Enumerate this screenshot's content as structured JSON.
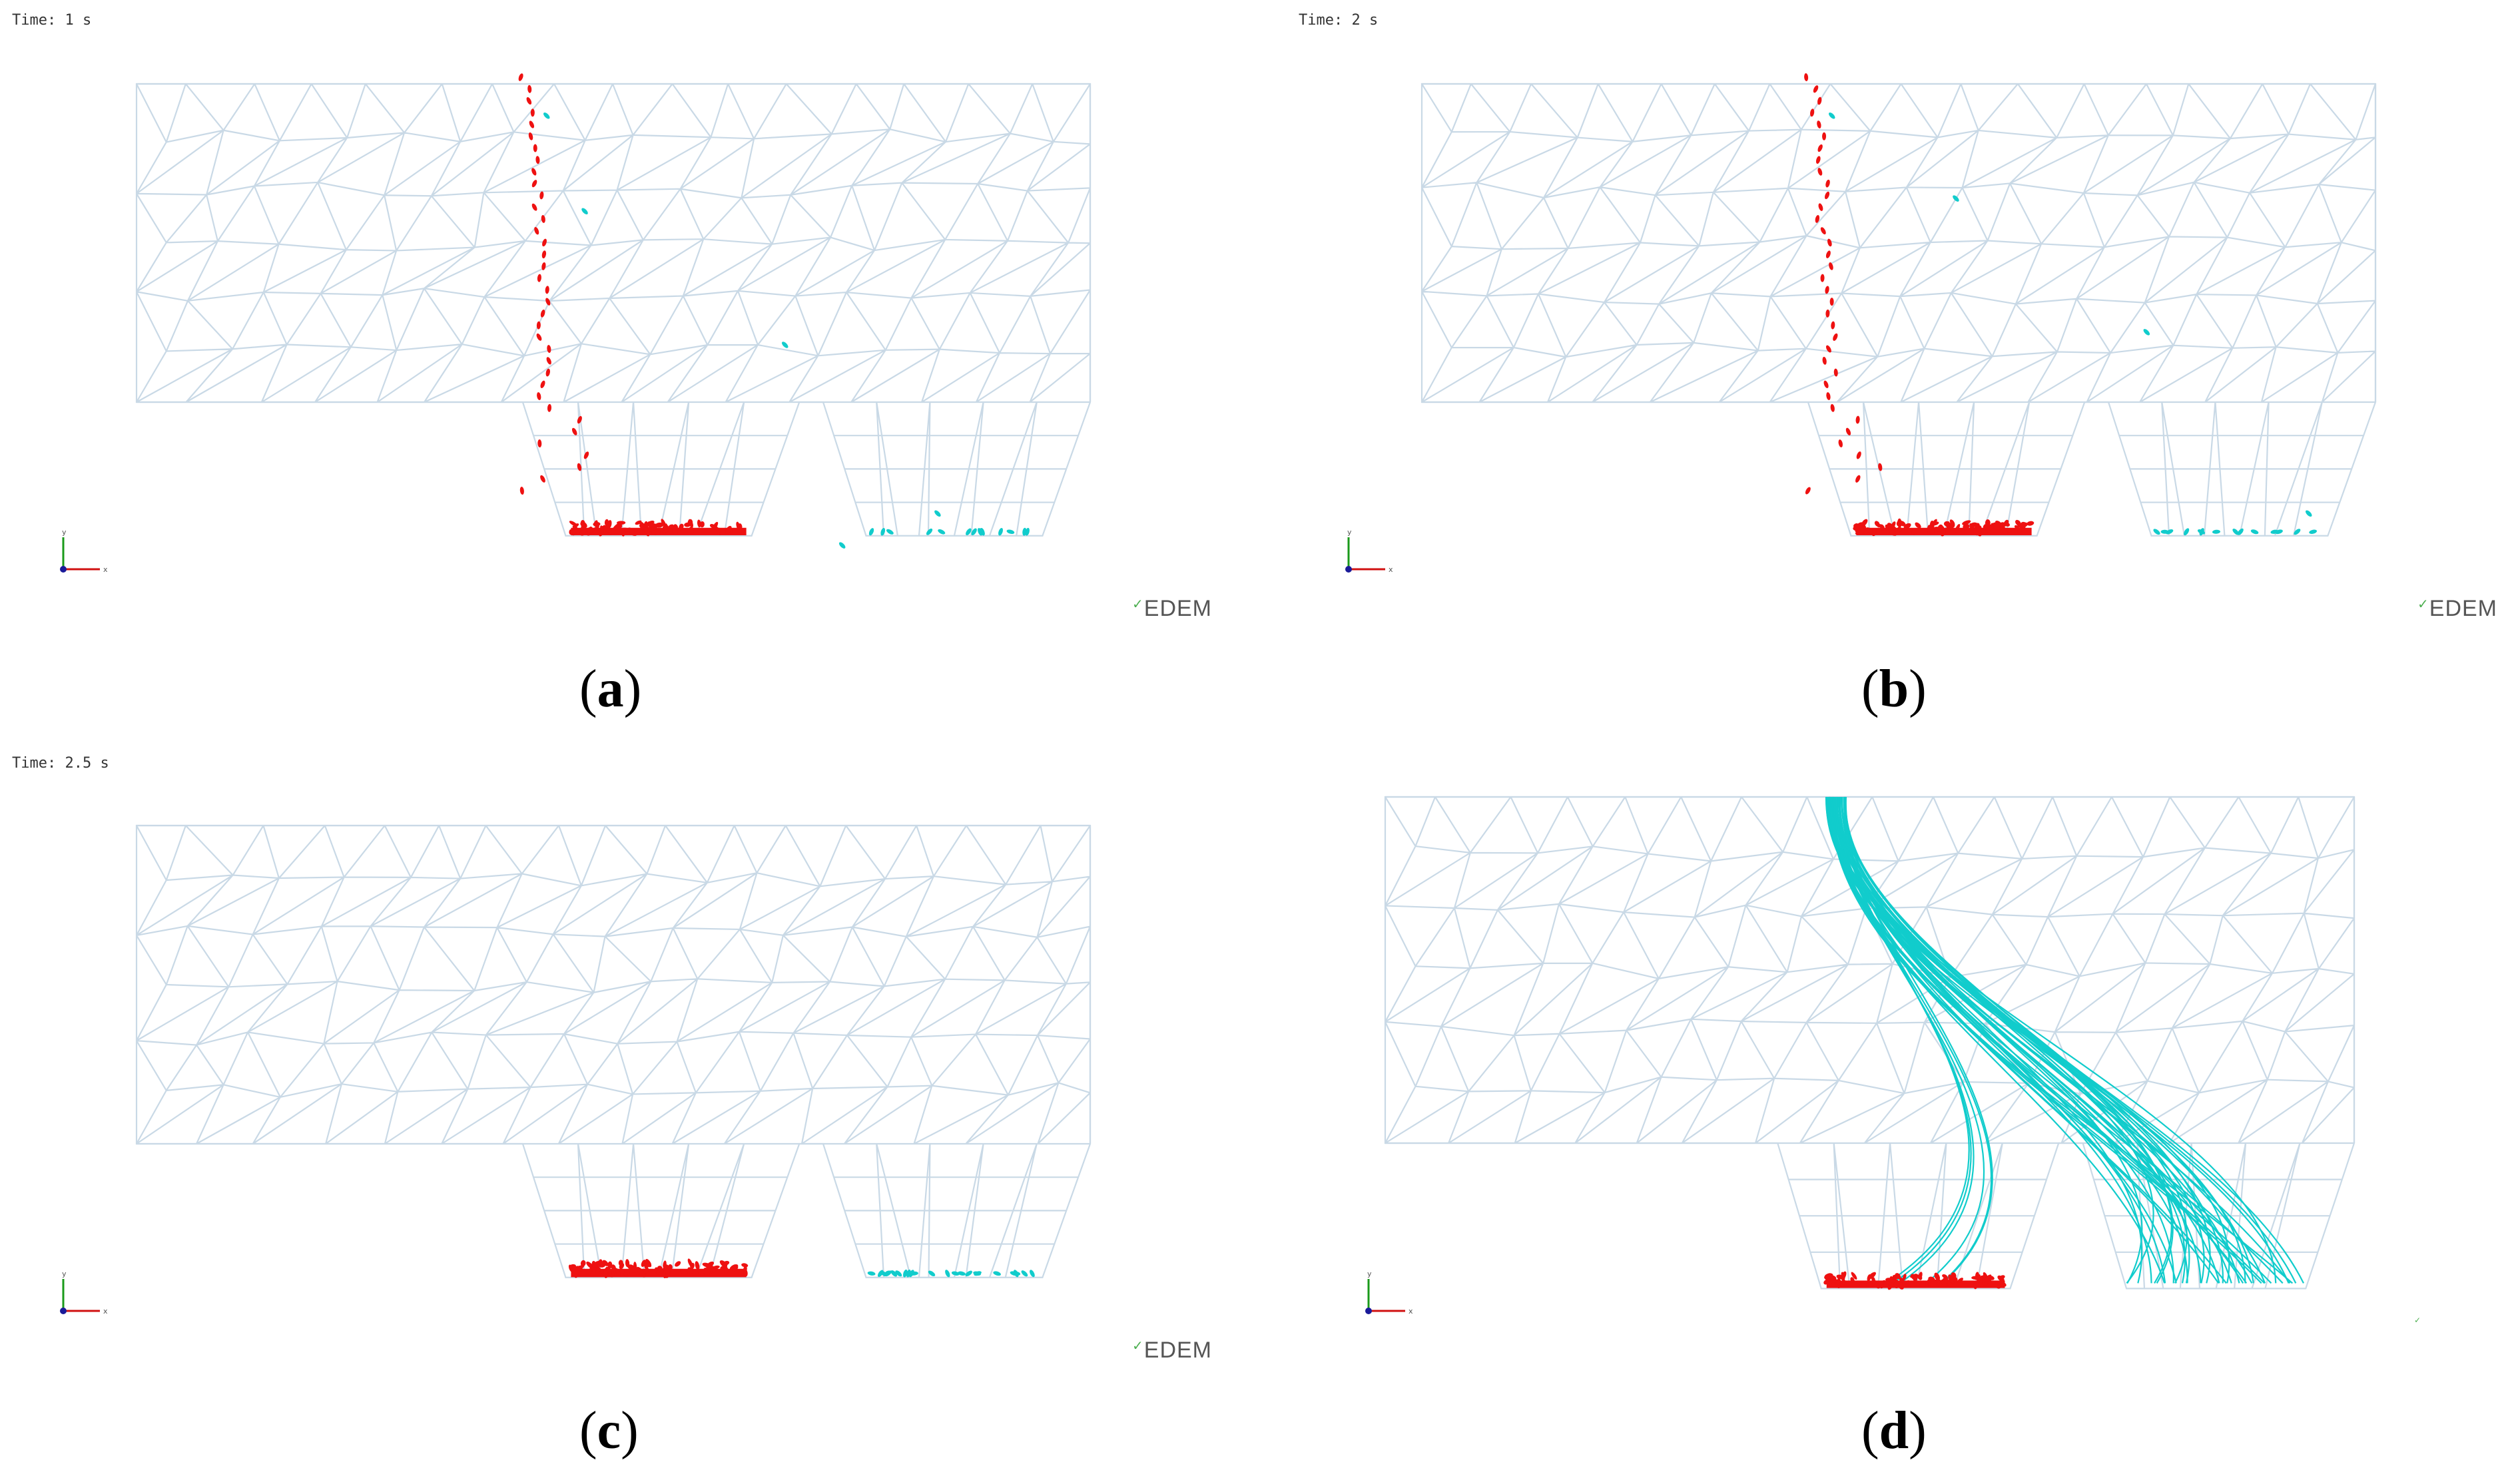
{
  "colors": {
    "mesh": "#c9d9e6",
    "red_particles": "#ee1111",
    "cyan_particles": "#11cccc",
    "axis_y": "#1a9a1a",
    "axis_x": "#d01010"
  },
  "logo_text": "EDEM",
  "panels": [
    {
      "id": "a",
      "time_label": "Time: 1 s",
      "caption_letter": "a",
      "state": "falling-early"
    },
    {
      "id": "b",
      "time_label": "Time: 2 s",
      "caption_letter": "b",
      "state": "falling-late"
    },
    {
      "id": "c",
      "time_label": "Time: 2.5 s",
      "caption_letter": "c",
      "state": "settled"
    },
    {
      "id": "d",
      "time_label": "",
      "caption_letter": "d",
      "state": "trajectories"
    }
  ],
  "axis_labels": {
    "x": "x",
    "y": "y"
  }
}
